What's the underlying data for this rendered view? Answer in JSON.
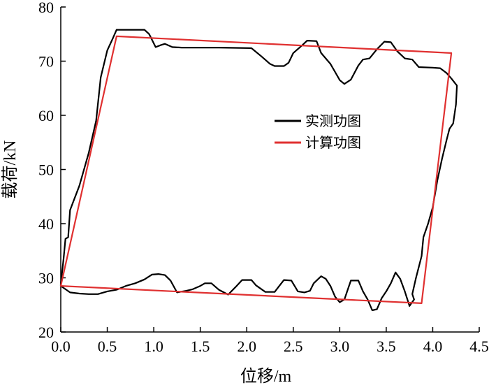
{
  "chart_data": {
    "type": "line",
    "xlabel": "位移/m",
    "ylabel": "载荷/kN",
    "xlim": [
      0,
      4.5
    ],
    "ylim": [
      20,
      80
    ],
    "x_ticks": [
      "0.0",
      "0.5",
      "1.0",
      "1.5",
      "2.0",
      "2.5",
      "3.0",
      "3.5",
      "4.0",
      "4.5"
    ],
    "y_ticks": [
      "20",
      "30",
      "40",
      "50",
      "60",
      "70",
      "80"
    ],
    "legend_position": "center-right",
    "grid": false,
    "series": [
      {
        "name": "实测功图",
        "color": "#000000",
        "closed": true,
        "points": [
          [
            0.0,
            28.8
          ],
          [
            0.03,
            33.5
          ],
          [
            0.05,
            37.2
          ],
          [
            0.08,
            37.5
          ],
          [
            0.1,
            42.5
          ],
          [
            0.2,
            47.0
          ],
          [
            0.3,
            53.0
          ],
          [
            0.38,
            59.0
          ],
          [
            0.43,
            67.0
          ],
          [
            0.5,
            72.0
          ],
          [
            0.56,
            74.2
          ],
          [
            0.6,
            75.8
          ],
          [
            0.7,
            75.8
          ],
          [
            0.8,
            75.8
          ],
          [
            0.9,
            75.8
          ],
          [
            0.95,
            75.0
          ],
          [
            1.02,
            72.6
          ],
          [
            1.08,
            73.0
          ],
          [
            1.12,
            73.2
          ],
          [
            1.2,
            72.6
          ],
          [
            1.3,
            72.5
          ],
          [
            1.5,
            72.5
          ],
          [
            1.7,
            72.5
          ],
          [
            2.05,
            72.4
          ],
          [
            2.15,
            71.0
          ],
          [
            2.25,
            69.5
          ],
          [
            2.3,
            69.1
          ],
          [
            2.4,
            69.1
          ],
          [
            2.45,
            69.7
          ],
          [
            2.5,
            71.5
          ],
          [
            2.6,
            73.0
          ],
          [
            2.65,
            73.8
          ],
          [
            2.75,
            73.7
          ],
          [
            2.8,
            71.5
          ],
          [
            2.9,
            69.5
          ],
          [
            2.95,
            68.0
          ],
          [
            3.0,
            66.5
          ],
          [
            3.05,
            65.8
          ],
          [
            3.12,
            66.6
          ],
          [
            3.2,
            69.2
          ],
          [
            3.25,
            70.3
          ],
          [
            3.32,
            70.5
          ],
          [
            3.4,
            72.2
          ],
          [
            3.48,
            73.6
          ],
          [
            3.55,
            73.5
          ],
          [
            3.62,
            71.8
          ],
          [
            3.7,
            70.5
          ],
          [
            3.78,
            70.3
          ],
          [
            3.85,
            68.9
          ],
          [
            4.0,
            68.8
          ],
          [
            4.08,
            68.7
          ],
          [
            4.15,
            67.8
          ],
          [
            4.2,
            66.8
          ],
          [
            4.26,
            65.5
          ],
          [
            4.25,
            62.0
          ],
          [
            4.22,
            58.5
          ],
          [
            4.18,
            57.5
          ],
          [
            4.15,
            55.5
          ],
          [
            4.1,
            52.0
          ],
          [
            4.05,
            48.0
          ],
          [
            4.0,
            43.0
          ],
          [
            3.95,
            40.0
          ],
          [
            3.9,
            37.5
          ],
          [
            3.88,
            34.0
          ],
          [
            3.82,
            30.0
          ],
          [
            3.78,
            27.0
          ],
          [
            3.8,
            26.0
          ],
          [
            3.75,
            24.8
          ],
          [
            3.7,
            27.5
          ],
          [
            3.65,
            29.8
          ],
          [
            3.6,
            31.0
          ],
          [
            3.55,
            29.0
          ],
          [
            3.5,
            27.5
          ],
          [
            3.45,
            26.2
          ],
          [
            3.4,
            24.2
          ],
          [
            3.35,
            24.0
          ],
          [
            3.3,
            26.0
          ],
          [
            3.25,
            27.5
          ],
          [
            3.2,
            29.5
          ],
          [
            3.12,
            29.5
          ],
          [
            3.1,
            28.5
          ],
          [
            3.05,
            26.0
          ],
          [
            3.0,
            25.5
          ],
          [
            2.95,
            26.5
          ],
          [
            2.9,
            28.5
          ],
          [
            2.85,
            29.8
          ],
          [
            2.8,
            30.3
          ],
          [
            2.72,
            29.0
          ],
          [
            2.68,
            27.6
          ],
          [
            2.62,
            27.3
          ],
          [
            2.55,
            27.5
          ],
          [
            2.48,
            29.5
          ],
          [
            2.4,
            29.6
          ],
          [
            2.35,
            28.5
          ],
          [
            2.3,
            27.4
          ],
          [
            2.2,
            27.4
          ],
          [
            2.1,
            28.6
          ],
          [
            2.05,
            29.6
          ],
          [
            1.95,
            29.6
          ],
          [
            1.88,
            28.3
          ],
          [
            1.8,
            26.9
          ],
          [
            1.7,
            27.8
          ],
          [
            1.62,
            29.0
          ],
          [
            1.55,
            29.0
          ],
          [
            1.5,
            28.5
          ],
          [
            1.42,
            27.9
          ],
          [
            1.35,
            27.6
          ],
          [
            1.25,
            27.3
          ],
          [
            1.18,
            29.5
          ],
          [
            1.12,
            30.5
          ],
          [
            1.05,
            30.7
          ],
          [
            0.98,
            30.6
          ],
          [
            0.9,
            29.7
          ],
          [
            0.8,
            29.0
          ],
          [
            0.7,
            28.5
          ],
          [
            0.6,
            27.8
          ],
          [
            0.5,
            27.5
          ],
          [
            0.4,
            27.0
          ],
          [
            0.3,
            27.0
          ],
          [
            0.2,
            27.1
          ],
          [
            0.1,
            27.3
          ],
          [
            0.0,
            28.5
          ]
        ]
      },
      {
        "name": "计算功图",
        "color": "#e03030",
        "closed": true,
        "points": [
          [
            0.0,
            28.5
          ],
          [
            0.6,
            74.6
          ],
          [
            4.2,
            71.5
          ],
          [
            3.88,
            25.3
          ]
        ]
      }
    ]
  }
}
